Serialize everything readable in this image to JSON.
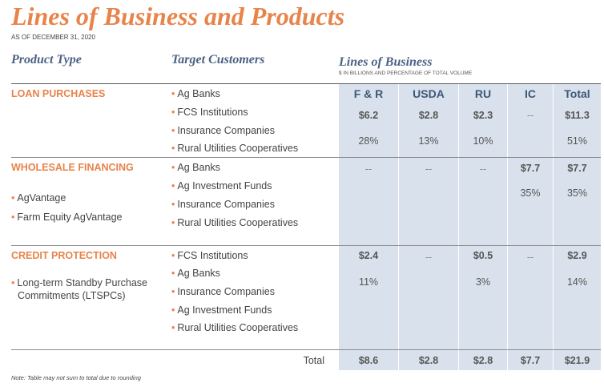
{
  "title": "Lines of Business and Products",
  "as_of": "AS OF DECEMBER 31, 2020",
  "headers": {
    "product_type": "Product Type",
    "target_customers": "Target Customers",
    "lines_of_business": "Lines of Business",
    "lob_subtitle": "$ IN BILLIONS AND PERCENTAGE OF TOTAL VOLUME"
  },
  "columns": [
    "F & R",
    "USDA",
    "RU",
    "IC",
    "Total"
  ],
  "sections": [
    {
      "title": "LOAN PURCHASES",
      "products": [],
      "customers": [
        "Ag Banks",
        "FCS Institutions",
        "Insurance Companies",
        "Rural Utilities Cooperatives"
      ],
      "amounts": [
        "$6.2",
        "$2.8",
        "$2.3",
        "--",
        "$11.3"
      ],
      "percents": [
        "28%",
        "13%",
        "10%",
        "",
        "51%"
      ]
    },
    {
      "title": "WHOLESALE FINANCING",
      "products": [
        "AgVantage",
        "Farm Equity AgVantage"
      ],
      "customers": [
        "Ag Banks",
        "Ag Investment Funds",
        "Insurance Companies",
        "Rural Utilities Cooperatives"
      ],
      "amounts": [
        "--",
        "--",
        "--",
        "$7.7",
        "$7.7"
      ],
      "percents": [
        "",
        "",
        "",
        "35%",
        "35%"
      ]
    },
    {
      "title": "CREDIT PROTECTION",
      "products": [
        "Long-term Standby Purchase",
        "Commitments (LTSPCs)"
      ],
      "customers": [
        "FCS Institutions",
        "Ag Banks",
        "Insurance Companies",
        "Ag Investment Funds",
        "Rural Utilities Cooperatives"
      ],
      "amounts": [
        "$2.4",
        "--",
        "$0.5",
        "--",
        "$2.9"
      ],
      "percents": [
        "11%",
        "",
        "3%",
        "",
        "14%"
      ]
    }
  ],
  "totals": {
    "label": "Total",
    "values": [
      "$8.6",
      "$2.8",
      "$2.8",
      "$7.7",
      "$21.9"
    ]
  },
  "note": "Note: Table may not sum to total due to rounding",
  "colors": {
    "accent_orange": "#e8834a",
    "header_blue": "#4b6284",
    "column_shade": "#d9e2ec"
  }
}
